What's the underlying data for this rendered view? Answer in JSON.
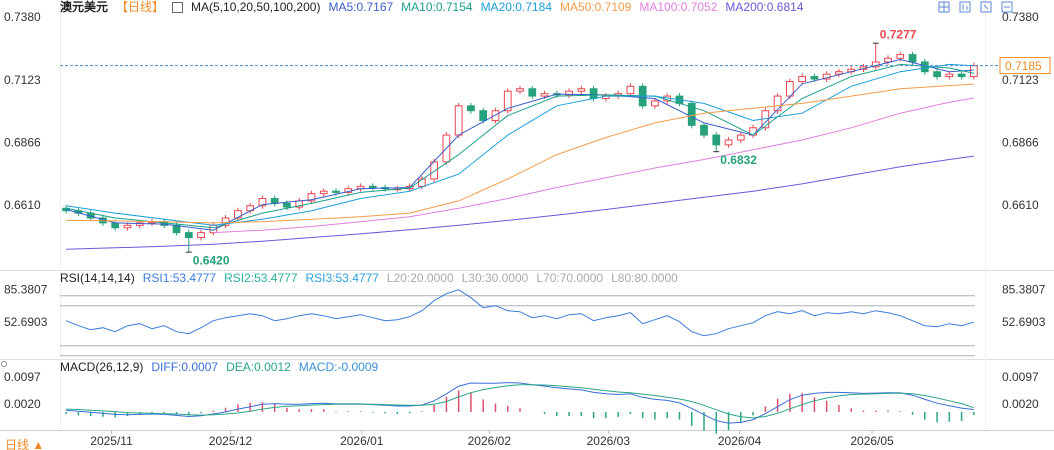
{
  "chart_data": [
    {
      "type": "candlestick",
      "title": "澳元美元",
      "period": "【日线】",
      "indicator": "MA(5,10,20,50,100,200)",
      "xlim": [
        -0.5,
        74.5
      ],
      "ylim": [
        0.6355,
        0.7413
      ],
      "yticks": [
        {
          "value": 0.738,
          "label": "0.7380"
        },
        0.7123,
        0.6866,
        {
          "value": 0.661,
          "label": "0.6610"
        }
      ],
      "up_color": "#e8474f",
      "down_color": "#26a17b",
      "open": [
        0.66,
        0.659,
        0.658,
        0.656,
        0.654,
        0.652,
        0.653,
        0.654,
        0.6545,
        0.653,
        0.65,
        0.648,
        0.65,
        0.653,
        0.656,
        0.659,
        0.661,
        0.664,
        0.662,
        0.6605,
        0.663,
        0.666,
        0.667,
        0.6665,
        0.668,
        0.669,
        0.6685,
        0.668,
        0.668,
        0.669,
        0.672,
        0.679,
        0.69,
        0.702,
        0.7,
        0.696,
        0.7,
        0.708,
        0.709,
        0.706,
        0.707,
        0.7065,
        0.708,
        0.709,
        0.705,
        0.706,
        0.707,
        0.71,
        0.702,
        0.704,
        0.706,
        0.703,
        0.694,
        0.69,
        0.686,
        0.688,
        0.69,
        0.693,
        0.7,
        0.706,
        0.712,
        0.714,
        0.713,
        0.715,
        0.716,
        0.717,
        0.718,
        0.72,
        0.7215,
        0.723,
        0.72,
        0.716,
        0.714,
        0.715,
        0.714
      ],
      "high": [
        0.6612,
        0.6602,
        0.6592,
        0.6572,
        0.6552,
        0.6542,
        0.6552,
        0.6557,
        0.6557,
        0.6542,
        0.6512,
        0.6512,
        0.6542,
        0.6572,
        0.6602,
        0.6622,
        0.6652,
        0.6652,
        0.6632,
        0.6642,
        0.6672,
        0.6682,
        0.6682,
        0.6692,
        0.6702,
        0.6702,
        0.6697,
        0.6692,
        0.6702,
        0.6732,
        0.6802,
        0.6912,
        0.7032,
        0.7032,
        0.7012,
        0.7012,
        0.7092,
        0.7102,
        0.7102,
        0.7082,
        0.7082,
        0.7092,
        0.7102,
        0.7102,
        0.7072,
        0.7082,
        0.7112,
        0.7112,
        0.7052,
        0.7072,
        0.7072,
        0.7042,
        0.6952,
        0.6912,
        0.6892,
        0.6912,
        0.6942,
        0.7012,
        0.7072,
        0.7132,
        0.7152,
        0.7152,
        0.7162,
        0.7172,
        0.7182,
        0.7192,
        0.7277,
        0.7227,
        0.7242,
        0.7242,
        0.7212,
        0.7172,
        0.7162,
        0.7162,
        0.7197
      ],
      "low": [
        0.6578,
        0.6568,
        0.6548,
        0.6528,
        0.6508,
        0.6508,
        0.6518,
        0.6528,
        0.6518,
        0.6488,
        0.642,
        0.6468,
        0.6488,
        0.6518,
        0.6548,
        0.6578,
        0.6598,
        0.6608,
        0.6593,
        0.6593,
        0.6618,
        0.6648,
        0.6653,
        0.6653,
        0.6668,
        0.6673,
        0.6668,
        0.6668,
        0.6668,
        0.6678,
        0.6708,
        0.6778,
        0.6888,
        0.6988,
        0.6948,
        0.6948,
        0.6988,
        0.7068,
        0.7048,
        0.7048,
        0.7053,
        0.7053,
        0.7068,
        0.7038,
        0.7038,
        0.7048,
        0.7058,
        0.7008,
        0.7008,
        0.7028,
        0.7018,
        0.6928,
        0.6888,
        0.6832,
        0.6848,
        0.6868,
        0.6888,
        0.6918,
        0.6988,
        0.7048,
        0.7108,
        0.7118,
        0.7118,
        0.7138,
        0.7148,
        0.7158,
        0.7168,
        0.7188,
        0.7203,
        0.7188,
        0.7148,
        0.7128,
        0.7128,
        0.7128,
        0.7128
      ],
      "close": [
        0.659,
        0.658,
        0.656,
        0.654,
        0.652,
        0.653,
        0.654,
        0.6545,
        0.653,
        0.65,
        0.648,
        0.65,
        0.653,
        0.656,
        0.659,
        0.661,
        0.664,
        0.662,
        0.6605,
        0.663,
        0.666,
        0.667,
        0.6665,
        0.668,
        0.669,
        0.6685,
        0.668,
        0.668,
        0.669,
        0.672,
        0.679,
        0.69,
        0.702,
        0.7,
        0.696,
        0.7,
        0.708,
        0.709,
        0.706,
        0.707,
        0.7065,
        0.708,
        0.709,
        0.705,
        0.706,
        0.707,
        0.71,
        0.702,
        0.704,
        0.706,
        0.703,
        0.694,
        0.69,
        0.686,
        0.688,
        0.69,
        0.693,
        0.7,
        0.706,
        0.712,
        0.714,
        0.713,
        0.715,
        0.716,
        0.717,
        0.718,
        0.72,
        0.7215,
        0.723,
        0.72,
        0.716,
        0.714,
        0.715,
        0.714,
        0.7185
      ],
      "series": [
        {
          "name": "MA5:0.7167",
          "color": "#3a5ec8",
          "x": [
            0,
            4,
            8,
            12,
            16,
            20,
            24,
            28,
            32,
            36,
            40,
            44,
            48,
            52,
            56,
            60,
            64,
            68,
            72,
            74
          ],
          "values": [
            0.6595,
            0.654,
            0.6535,
            0.651,
            0.6615,
            0.6635,
            0.668,
            0.6685,
            0.69,
            0.701,
            0.7068,
            0.7065,
            0.705,
            0.695,
            0.69,
            0.711,
            0.716,
            0.721,
            0.716,
            0.7167
          ]
        },
        {
          "name": "MA10:0.7154",
          "color": "#1aa08c",
          "x": [
            0,
            4,
            8,
            12,
            16,
            20,
            24,
            28,
            32,
            36,
            40,
            44,
            48,
            52,
            56,
            60,
            64,
            68,
            72,
            74
          ],
          "values": [
            0.66,
            0.656,
            0.654,
            0.652,
            0.658,
            0.662,
            0.6665,
            0.6683,
            0.682,
            0.698,
            0.706,
            0.7065,
            0.706,
            0.7,
            0.69,
            0.705,
            0.714,
            0.719,
            0.7175,
            0.7154
          ]
        },
        {
          "name": "MA20:0.7184",
          "color": "#1a9fd8",
          "x": [
            0,
            4,
            8,
            12,
            16,
            20,
            24,
            28,
            32,
            36,
            40,
            44,
            48,
            52,
            56,
            60,
            64,
            68,
            72,
            74
          ],
          "values": [
            0.661,
            0.658,
            0.6555,
            0.653,
            0.6555,
            0.659,
            0.664,
            0.667,
            0.674,
            0.69,
            0.702,
            0.706,
            0.706,
            0.703,
            0.696,
            0.699,
            0.71,
            0.716,
            0.719,
            0.7184
          ]
        },
        {
          "name": "MA50:0.7109",
          "color": "#f39c4a",
          "x": [
            0,
            4,
            8,
            12,
            16,
            20,
            24,
            28,
            32,
            36,
            40,
            44,
            48,
            52,
            56,
            60,
            64,
            68,
            72,
            74
          ],
          "values": [
            0.655,
            0.6548,
            0.6545,
            0.654,
            0.6545,
            0.6555,
            0.6565,
            0.658,
            0.663,
            0.672,
            0.682,
            0.689,
            0.695,
            0.699,
            0.701,
            0.703,
            0.706,
            0.709,
            0.7103,
            0.7109
          ]
        },
        {
          "name": "MA100:0.7052",
          "color": "#e080e0",
          "x": [
            0,
            4,
            8,
            12,
            16,
            20,
            24,
            28,
            32,
            36,
            40,
            44,
            48,
            52,
            56,
            60,
            64,
            68,
            72,
            74
          ],
          "values": [
            null,
            null,
            null,
            0.65,
            0.651,
            0.6525,
            0.6545,
            0.6565,
            0.66,
            0.664,
            0.6685,
            0.6725,
            0.6765,
            0.68,
            0.684,
            0.688,
            0.693,
            0.699,
            0.7035,
            0.7052
          ]
        },
        {
          "name": "MA200:0.6814",
          "color": "#6a5ad8",
          "x": [
            0,
            4,
            8,
            12,
            16,
            20,
            24,
            28,
            32,
            36,
            40,
            44,
            48,
            52,
            56,
            60,
            64,
            68,
            72,
            74
          ],
          "values": [
            0.6432,
            0.6438,
            0.6444,
            0.6452,
            0.6465,
            0.648,
            0.6495,
            0.6512,
            0.653,
            0.655,
            0.6572,
            0.6595,
            0.662,
            0.6645,
            0.667,
            0.67,
            0.6735,
            0.677,
            0.68,
            0.6814
          ]
        }
      ],
      "annotations": [
        {
          "x": 66,
          "value": 0.7277,
          "label": "0.7277",
          "position": "above",
          "color": "#e8474f"
        },
        {
          "x": 10,
          "value": 0.642,
          "label": "0.6420",
          "position": "below",
          "color": "#26a17b"
        },
        {
          "x": 53,
          "value": 0.6832,
          "label": "0.6832",
          "position": "below",
          "color": "#26a17b"
        }
      ],
      "last_price": {
        "value": 0.7185,
        "label": "0.7185",
        "color": "#f08a24"
      }
    },
    {
      "type": "line",
      "title": "RSI(14,14,14)",
      "xlim": [
        -0.5,
        74.5
      ],
      "ylim": [
        17.7,
        93.7
      ],
      "yticks": [
        85.3807,
        52.6903
      ],
      "series": [
        {
          "name": "RSI1:53.4777",
          "color": "#3b7dd8",
          "values": [
            55,
            50,
            46,
            48,
            44,
            50,
            52,
            47,
            50,
            44,
            42,
            48,
            55,
            58,
            60,
            62,
            60,
            55,
            57,
            60,
            62,
            60,
            57,
            59,
            61,
            58,
            55,
            56,
            59,
            65,
            75,
            82,
            86,
            78,
            68,
            70,
            65,
            64,
            58,
            60,
            57,
            61,
            62,
            55,
            58,
            60,
            63,
            52,
            56,
            60,
            54,
            44,
            40,
            42,
            47,
            50,
            53,
            60,
            64,
            62,
            65,
            60,
            63,
            62,
            64,
            62,
            65,
            63,
            60,
            55,
            50,
            49,
            52,
            50,
            53.4777
          ]
        }
      ],
      "legend_extra": [
        {
          "name": "RSI2:53.4777",
          "color": "#2ab0a0"
        },
        {
          "name": "RSI3:53.4777",
          "color": "#30a0e0"
        }
      ],
      "levels": [
        {
          "value": 20,
          "label": "L20:20.0000"
        },
        {
          "value": 30,
          "label": "L30:30.0000"
        },
        {
          "value": 70,
          "label": "L70:70.0000"
        },
        {
          "value": 80,
          "label": "L80:80.0000"
        }
      ],
      "level_color": "#b0b0b0"
    },
    {
      "type": "macd",
      "title": "MACD(26,12,9)",
      "xlim": [
        -0.5,
        74.5
      ],
      "ylim": [
        -0.0046,
        0.0143
      ],
      "yticks": [
        0.0097,
        {
          "value": 0.002,
          "label": "0.0020"
        }
      ],
      "xticks": [
        {
          "value": 3.7,
          "label": "2025/11"
        },
        {
          "value": 13.4,
          "label": "2025/12"
        },
        {
          "value": 24.1,
          "label": "2026/01"
        },
        {
          "value": 34.5,
          "label": "2026/02"
        },
        {
          "value": 44.2,
          "label": "2026/03"
        },
        {
          "value": 54.9,
          "label": "2026/04"
        },
        {
          "value": 65.7,
          "label": "2026/05"
        }
      ],
      "series": [
        {
          "name": "DIFF:0.0007",
          "color": "#3a6fd8",
          "values": [
            0.0005,
            0.0002,
            -0.0001,
            -0.0004,
            -0.0007,
            -0.0008,
            -0.0007,
            -0.0006,
            -0.0007,
            -0.001,
            -0.0013,
            -0.0011,
            -0.0006,
            0.0,
            0.0008,
            0.0015,
            0.0022,
            0.0024,
            0.0022,
            0.0022,
            0.0024,
            0.0025,
            0.0023,
            0.0023,
            0.0023,
            0.0021,
            0.0019,
            0.0017,
            0.0017,
            0.002,
            0.0032,
            0.0052,
            0.0074,
            0.0083,
            0.0082,
            0.0082,
            0.0084,
            0.0083,
            0.0078,
            0.0074,
            0.0069,
            0.0066,
            0.0063,
            0.0056,
            0.0052,
            0.005,
            0.0052,
            0.0042,
            0.0036,
            0.0033,
            0.0026,
            0.001,
            -0.0008,
            -0.0025,
            -0.0032,
            -0.003,
            -0.0022,
            -0.0005,
            0.0015,
            0.0035,
            0.0048,
            0.0053,
            0.0056,
            0.0056,
            0.0055,
            0.0053,
            0.0054,
            0.0055,
            0.0055,
            0.0048,
            0.0036,
            0.0025,
            0.0018,
            0.0011,
            0.0007
          ]
        },
        {
          "name": "DEA:0.0012",
          "color": "#2aa58a",
          "values": [
            0.0008,
            0.0007,
            0.0005,
            0.0003,
            0.0001,
            -0.0002,
            -0.0003,
            -0.0004,
            -0.0005,
            -0.0006,
            -0.0008,
            -0.0009,
            -0.0008,
            -0.0006,
            -0.0003,
            0.0002,
            0.0008,
            0.0013,
            0.0016,
            0.0018,
            0.002,
            0.0021,
            0.0022,
            0.0022,
            0.0022,
            0.0022,
            0.0021,
            0.002,
            0.0019,
            0.0019,
            0.0022,
            0.003,
            0.0043,
            0.0055,
            0.0064,
            0.007,
            0.0075,
            0.0078,
            0.0078,
            0.0077,
            0.0075,
            0.0072,
            0.0069,
            0.0065,
            0.0061,
            0.0057,
            0.0055,
            0.0051,
            0.0047,
            0.0042,
            0.0037,
            0.003,
            0.0019,
            0.0006,
            -0.0006,
            -0.0014,
            -0.0017,
            -0.0013,
            -0.0004,
            0.0009,
            0.0021,
            0.0032,
            0.004,
            0.0046,
            0.005,
            0.0051,
            0.0052,
            0.0053,
            0.0054,
            0.0052,
            0.0047,
            0.004,
            0.0032,
            0.0024,
            0.0012
          ]
        }
      ],
      "histogram": {
        "name": "MACD:-0.0009",
        "legend_color": "#3a8fd8",
        "up_color": "#e0506a",
        "down_color": "#2aa58a",
        "values": [
          -0.0006,
          -0.001,
          -0.0012,
          -0.0014,
          -0.0016,
          -0.0012,
          -0.0008,
          -0.0004,
          -0.0004,
          -0.0008,
          -0.001,
          -0.0004,
          0.0004,
          0.0012,
          0.0022,
          0.0026,
          0.0028,
          0.0022,
          0.0012,
          0.0008,
          0.0008,
          0.0008,
          0.0002,
          0.0002,
          0.0002,
          -0.0002,
          -0.0004,
          -0.0006,
          -0.0004,
          0.0002,
          0.002,
          0.0044,
          0.0062,
          0.0056,
          0.0036,
          0.0024,
          0.0018,
          0.001,
          0,
          -0.0006,
          -0.0012,
          -0.0012,
          -0.0012,
          -0.0018,
          -0.0018,
          -0.0014,
          -0.0006,
          -0.0018,
          -0.0022,
          -0.0018,
          -0.0022,
          -0.004,
          -0.0054,
          -0.0062,
          -0.0052,
          -0.0032,
          -0.001,
          0.0016,
          0.0038,
          0.0052,
          0.0054,
          0.0042,
          0.0032,
          0.002,
          0.001,
          0.0004,
          0.0004,
          0.0004,
          0.0002,
          -0.0008,
          -0.0022,
          -0.003,
          -0.0028,
          -0.0026,
          -0.0009
        ]
      }
    }
  ],
  "period_button": "日线 ▲",
  "period_button_color": "#f08a24"
}
